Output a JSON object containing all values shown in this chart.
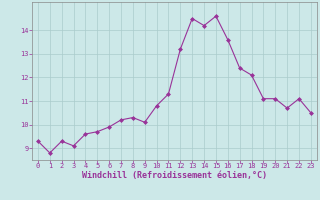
{
  "x": [
    0,
    1,
    2,
    3,
    4,
    5,
    6,
    7,
    8,
    9,
    10,
    11,
    12,
    13,
    14,
    15,
    16,
    17,
    18,
    19,
    20,
    21,
    22,
    23
  ],
  "y": [
    9.3,
    8.8,
    9.3,
    9.1,
    9.6,
    9.7,
    9.9,
    10.2,
    10.3,
    10.1,
    10.8,
    11.3,
    13.2,
    14.5,
    14.2,
    14.6,
    13.6,
    12.4,
    12.1,
    11.1,
    11.1,
    10.7,
    11.1,
    10.5
  ],
  "line_color": "#993399",
  "marker": "D",
  "marker_size": 2,
  "line_width": 0.8,
  "bg_color": "#cce8e8",
  "grid_color": "#aacccc",
  "xlabel": "Windchill (Refroidissement éolien,°C)",
  "xlabel_color": "#993399",
  "tick_color": "#993399",
  "ylim": [
    8.5,
    15.2
  ],
  "xlim": [
    -0.5,
    23.5
  ],
  "yticks": [
    9,
    10,
    11,
    12,
    13,
    14
  ],
  "xticks": [
    0,
    1,
    2,
    3,
    4,
    5,
    6,
    7,
    8,
    9,
    10,
    11,
    12,
    13,
    14,
    15,
    16,
    17,
    18,
    19,
    20,
    21,
    22,
    23
  ],
  "xtick_labels": [
    "0",
    "1",
    "2",
    "3",
    "4",
    "5",
    "6",
    "7",
    "8",
    "9",
    "10",
    "11",
    "12",
    "13",
    "14",
    "15",
    "16",
    "17",
    "18",
    "19",
    "20",
    "21",
    "22",
    "23"
  ],
  "ytick_labels": [
    "9",
    "10",
    "11",
    "12",
    "13",
    "14"
  ],
  "label_fontsize": 6.0,
  "tick_fontsize": 5.0
}
